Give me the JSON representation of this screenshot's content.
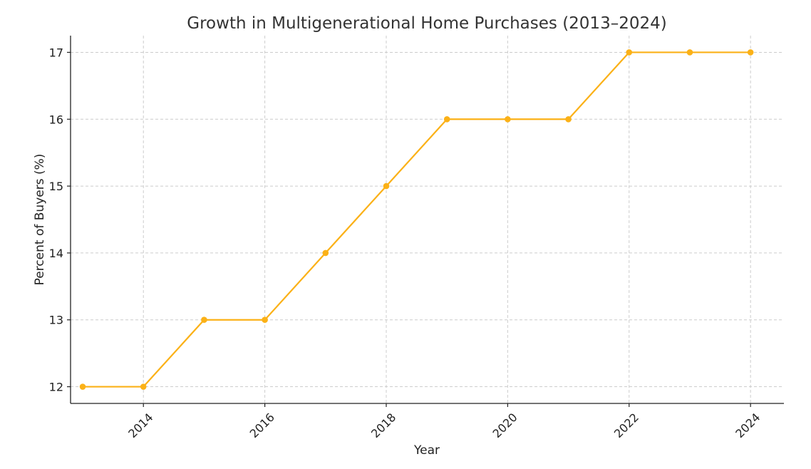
{
  "chart_data": {
    "type": "line",
    "title": "Growth in Multigenerational Home Purchases (2013–2024)",
    "xlabel": "Year",
    "ylabel": "Percent of Buyers (%)",
    "x": [
      2013,
      2014,
      2015,
      2016,
      2017,
      2018,
      2019,
      2020,
      2021,
      2022,
      2023,
      2024
    ],
    "series": [
      {
        "values": [
          12,
          12,
          13,
          13,
          14,
          15,
          16,
          16,
          16,
          17,
          17,
          17
        ],
        "color": "#FBB117"
      }
    ],
    "xlim": [
      2012.8,
      2024.55
    ],
    "ylim": [
      11.75,
      17.25
    ],
    "xticks": [
      2014,
      2016,
      2018,
      2020,
      2022,
      2024
    ],
    "xtick_labels": [
      "2014",
      "2016",
      "2018",
      "2020",
      "2022",
      "2024"
    ],
    "xtick_rotation": -45,
    "yticks": [
      12,
      13,
      14,
      15,
      16,
      17
    ],
    "ytick_labels": [
      "12",
      "13",
      "14",
      "15",
      "16",
      "17"
    ],
    "grid": true,
    "marker": "circle"
  }
}
